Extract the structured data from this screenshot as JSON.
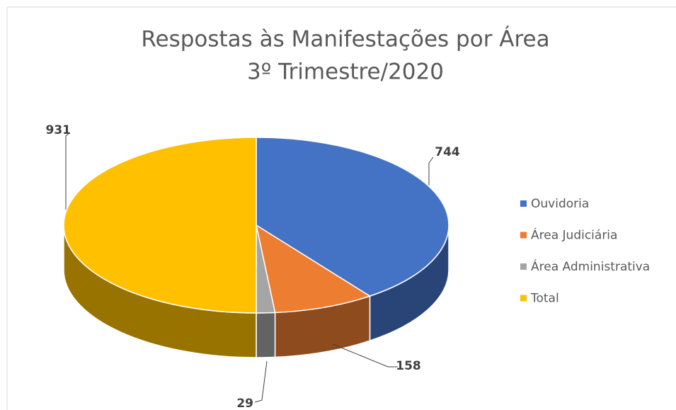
{
  "chart_data": {
    "type": "pie3d",
    "title": [
      "Respostas às Manifestações por Área",
      "3º Trimestre/2020"
    ],
    "categories": [
      "Ouvidoria",
      "Área Judiciária",
      "Área Administrativa",
      "Total"
    ],
    "values": [
      744,
      158,
      29,
      931
    ],
    "colors": [
      "#4472c4",
      "#ed7d31",
      "#a5a5a5",
      "#ffc000"
    ],
    "legend": "right"
  }
}
